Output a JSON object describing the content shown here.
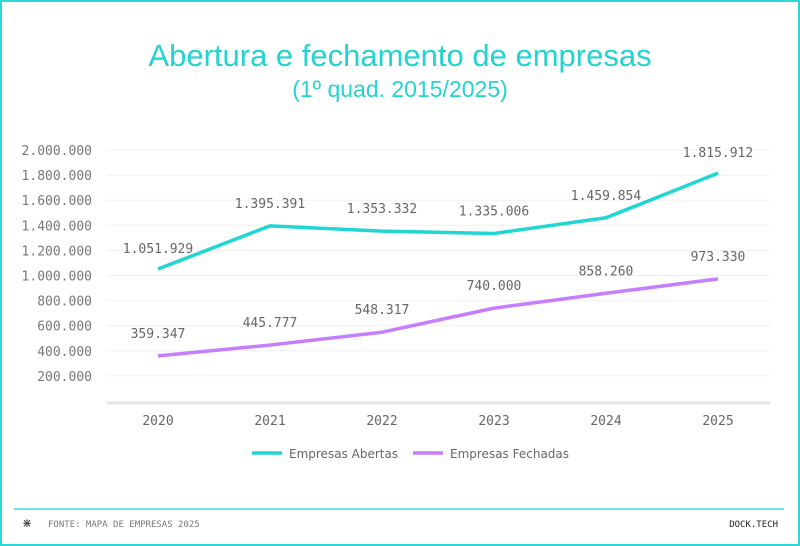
{
  "chart_data": {
    "type": "line",
    "title": "Abertura e fechamento de empresas",
    "subtitle": "(1º quad. 2015/2025)",
    "categories": [
      "2020",
      "2021",
      "2022",
      "2023",
      "2024",
      "2025"
    ],
    "series": [
      {
        "name": "Empresas Abertas",
        "color": "#1fd6d2",
        "values": [
          1051929,
          1395391,
          1353332,
          1335006,
          1459854,
          1815912
        ],
        "labels": [
          "1.051.929",
          "1.395.391",
          "1.353.332",
          "1.335.006",
          "1.459.854",
          "1.815.912"
        ]
      },
      {
        "name": "Empresas Fechadas",
        "color": "#c77dff",
        "values": [
          359347,
          445777,
          548317,
          740000,
          858260,
          973330
        ],
        "labels": [
          "359.347",
          "445.777",
          "548.317",
          "740.000",
          "858.260",
          "973.330"
        ]
      }
    ],
    "yticks": [
      "200.000",
      "400.000",
      "600.000",
      "800.000",
      "1.000.000",
      "1.200.000",
      "1.400.000",
      "1.600.000",
      "1.800.000",
      "2.000.000"
    ],
    "ylim": [
      0,
      2000000
    ],
    "grid": true,
    "legend": "bottom"
  },
  "footer": {
    "source": "FONTE: MAPA DE EMPRESAS 2025",
    "brand": "DOCK.TECH",
    "icon": "asterisk-icon"
  }
}
